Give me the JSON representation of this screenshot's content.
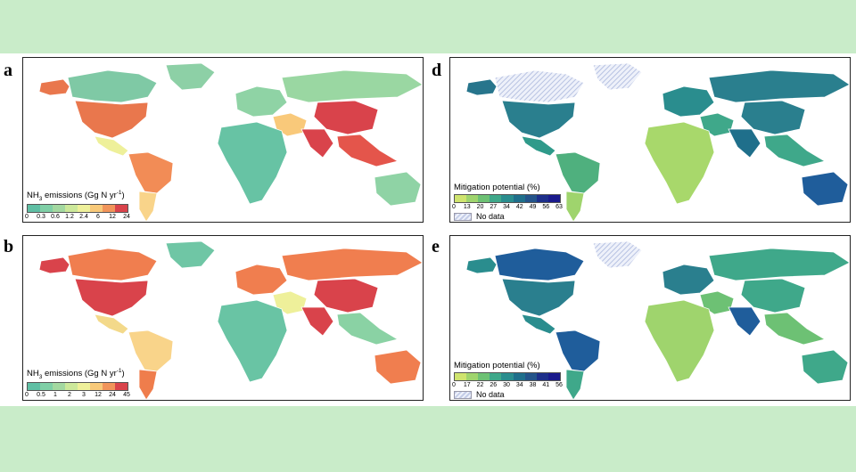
{
  "panels": [
    {
      "letter": "a",
      "legend_title": "NH",
      "legend_sub": "3",
      "legend_rest": " emissions (Gg N yr",
      "legend_sup": "-1",
      "legend_close": ")",
      "ticks": [
        "0",
        "0.3",
        "0.6",
        "1.2",
        "2.4",
        "6",
        "12",
        "24"
      ],
      "colors": [
        "#5fbfa4",
        "#7fcfa6",
        "#a3d8a0",
        "#cce89a",
        "#eef09a",
        "#f8c979",
        "#f1945a",
        "#d9434b"
      ],
      "regions": {
        "north_america": "#e9774d",
        "canada": "#7fc9a5",
        "alaska": "#e9774d",
        "greenland": "#8dd0a6",
        "central_america": "#eef09a",
        "south_america": "#f28c56",
        "south_america_south": "#f9d48a",
        "europe": "#8fd3a5",
        "russia": "#9ad7a2",
        "middle_east": "#f9c97a",
        "africa": "#67c3a4",
        "china": "#d9434b",
        "south_asia": "#d9434b",
        "southeast_asia": "#e4554b",
        "australia": "#8fd3a5"
      }
    },
    {
      "letter": "b",
      "legend_title": "NH",
      "legend_sub": "3",
      "legend_rest": " emissions (Gg N yr",
      "legend_sup": "-1",
      "legend_close": ")",
      "ticks": [
        "0",
        "0.5",
        "1",
        "2",
        "3",
        "12",
        "24",
        "45"
      ],
      "colors": [
        "#5fbfa4",
        "#7fcfa6",
        "#a3d8a0",
        "#cce89a",
        "#eef09a",
        "#f8c979",
        "#f1945a",
        "#d9434b"
      ],
      "regions": {
        "north_america": "#d9434b",
        "canada": "#f07e4f",
        "alaska": "#d9434b",
        "greenland": "#6fc6a5",
        "central_america": "#f3d98a",
        "south_america": "#f9d48a",
        "south_america_south": "#ef7d4c",
        "europe": "#f07e4f",
        "russia": "#f07e4f",
        "middle_east": "#eef09a",
        "africa": "#69c4a4",
        "china": "#d9434b",
        "south_asia": "#d9434b",
        "southeast_asia": "#8ad2a4",
        "australia": "#f07e4f"
      }
    },
    {
      "letter": "d",
      "legend_title": "Mitigation potential (%)",
      "ticks": [
        "0",
        "13",
        "20",
        "27",
        "34",
        "42",
        "49",
        "56",
        "63"
      ],
      "colors": [
        "#cfe46e",
        "#9fd46d",
        "#6dc174",
        "#3fa88a",
        "#2a8d8e",
        "#1f6f8b",
        "#24548a",
        "#1d2f8a",
        "#1a1a8c"
      ],
      "nodata_label": "No data",
      "regions": {
        "north_america": "#2a7f8e",
        "canada": "nodata",
        "alaska": "#27758c",
        "greenland": "nodata",
        "central_america": "#2f9a8a",
        "south_america": "#4fb07e",
        "south_america_south": "#9fd46d",
        "europe": "#2a8d8e",
        "russia": "#2a7f8e",
        "middle_east": "#3fa88a",
        "africa": "#a8d86b",
        "china": "#2a7f8e",
        "south_asia": "#1f6f8b",
        "southeast_asia": "#3fa88a",
        "australia": "#1f5d9b"
      }
    },
    {
      "letter": "e",
      "legend_title": "Mitigation potential (%)",
      "ticks": [
        "0",
        "17",
        "22",
        "26",
        "30",
        "34",
        "38",
        "41",
        "56"
      ],
      "colors": [
        "#cfe46e",
        "#9fd46d",
        "#6dc174",
        "#3fa88a",
        "#2a8d8e",
        "#1f6f8b",
        "#24548a",
        "#1d2f8a",
        "#1a1a8c"
      ],
      "nodata_label": "No data",
      "regions": {
        "north_america": "#2a7f8e",
        "canada": "#1f5d9b",
        "alaska": "#2a8d8e",
        "greenland": "nodata",
        "central_america": "#2a8d8e",
        "south_america": "#1f5d9b",
        "south_america_south": "#3fa88a",
        "europe": "#2a7f8e",
        "russia": "#3fa88a",
        "middle_east": "#6dc174",
        "africa": "#9fd46d",
        "china": "#3fa88a",
        "south_asia": "#1f5d9b",
        "southeast_asia": "#6dc174",
        "australia": "#3fa88a"
      }
    }
  ]
}
